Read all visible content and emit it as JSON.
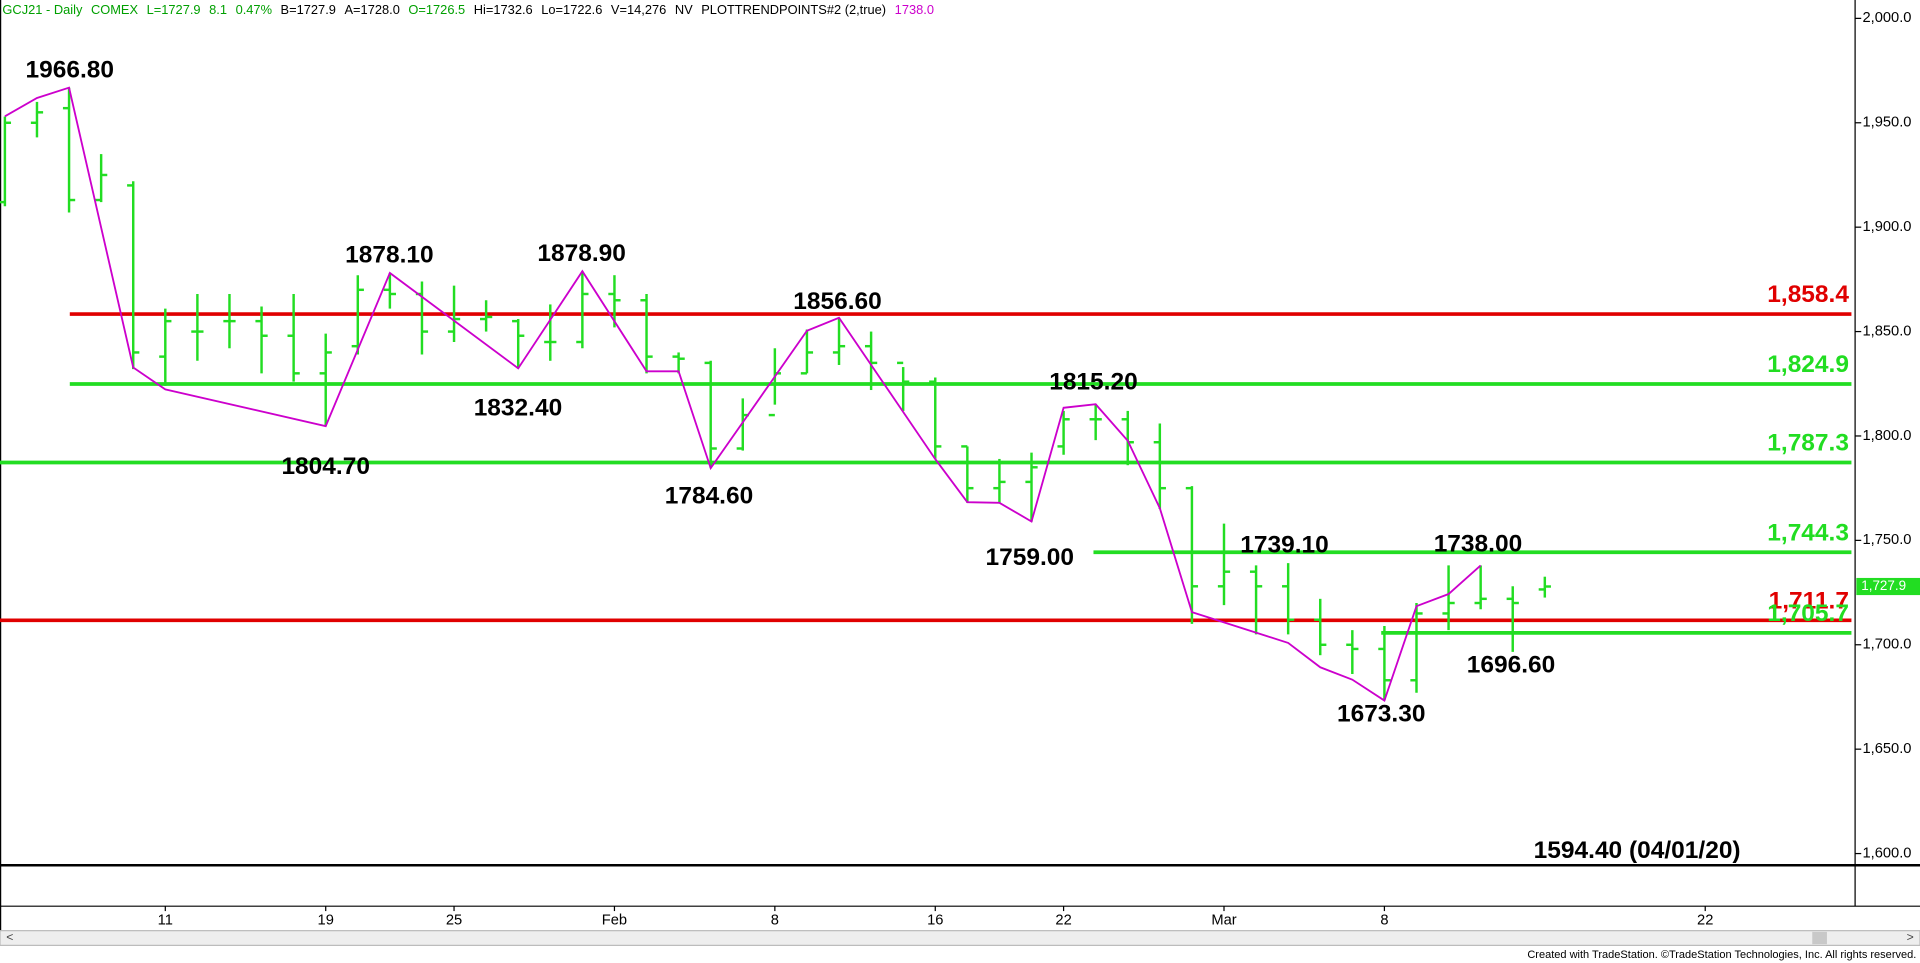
{
  "chart_data": {
    "type": "ohlc",
    "header": [
      {
        "text": "GCJ21 - Daily",
        "color": "#00a000"
      },
      {
        "text": "COMEX",
        "color": "#00a000"
      },
      {
        "text": "L=1727.9",
        "color": "#00a000"
      },
      {
        "text": "8.1",
        "color": "#00a000"
      },
      {
        "text": "0.47%",
        "color": "#00a000"
      },
      {
        "text": "B=1727.9",
        "color": "#000000"
      },
      {
        "text": "A=1728.0",
        "color": "#000000"
      },
      {
        "text": "O=1726.5",
        "color": "#00a000"
      },
      {
        "text": "Hi=1732.6",
        "color": "#000000"
      },
      {
        "text": "Lo=1722.6",
        "color": "#000000"
      },
      {
        "text": "V=14,276",
        "color": "#000000"
      },
      {
        "text": "NV",
        "color": "#000000"
      },
      {
        "text": "PLOTTRENDPOINTS#2 (2,true)",
        "color": "#000000"
      },
      {
        "text": "1738.0",
        "color": "#cc00cc"
      }
    ],
    "footer": "Created with TradeStation. ©TradeStation Technologies, Inc. All rights reserved.",
    "categories": [
      null,
      null,
      null,
      null,
      null,
      "11",
      null,
      null,
      null,
      null,
      "19",
      null,
      null,
      null,
      "25",
      null,
      null,
      null,
      null,
      "Feb",
      null,
      null,
      null,
      null,
      "8",
      null,
      null,
      null,
      null,
      "16",
      null,
      null,
      null,
      "22",
      null,
      null,
      null,
      null,
      "Mar",
      null,
      null,
      null,
      null,
      "8",
      null,
      null,
      null,
      null,
      null,
      null,
      null,
      null,
      null,
      "22",
      null,
      null,
      null,
      null
    ],
    "ohlc": {
      "color": "#22dd22",
      "open": [
        1912,
        1950,
        1957,
        1913,
        1920,
        1838,
        1850,
        1855,
        1855,
        1848,
        1830,
        1843,
        1870,
        1868,
        1850,
        1856,
        1855,
        1845,
        1845,
        1868,
        1865,
        1838,
        1835,
        1794,
        1810,
        1830,
        1840,
        1843,
        1835,
        1826,
        1795,
        1775,
        1778,
        1795,
        1808,
        1808,
        1797,
        1775,
        1728,
        1735,
        1728,
        1712,
        1700,
        1698,
        1683,
        1715,
        1720,
        1722,
        1726.5,
        null,
        null,
        null,
        null,
        null,
        null,
        null,
        null,
        null
      ],
      "high": [
        1953,
        1960,
        1966.8,
        1935,
        1922,
        1861,
        1868,
        1868,
        1862,
        1868,
        1849,
        1877,
        1878.1,
        1874,
        1872,
        1865,
        1856,
        1863,
        1878.9,
        1877,
        1868,
        1840,
        1836,
        1818,
        1842,
        1851,
        1856.6,
        1850,
        1833,
        1828,
        1795,
        1789,
        1792,
        1812,
        1815.2,
        1812,
        1806,
        1776,
        1758,
        1738,
        1739.1,
        1722,
        1707,
        1709,
        1720,
        1738,
        1738,
        1728,
        1732.6,
        null,
        null,
        null,
        null,
        null,
        null,
        null,
        null,
        null
      ],
      "low": [
        1910,
        1943,
        1907,
        1912,
        1832,
        1824,
        1836,
        1842,
        1830,
        1826,
        1804.7,
        1839,
        1861,
        1839,
        1845,
        1850,
        1832.4,
        1836,
        1842,
        1852,
        1830,
        1830,
        1784.6,
        1793,
        1815,
        1830,
        1834,
        1822,
        1812,
        1789,
        1768,
        1768,
        1759,
        1791,
        1798,
        1786,
        1765,
        1710,
        1719,
        1705,
        1705,
        1695,
        1686,
        1673.3,
        1677,
        1707,
        1717,
        1696.6,
        1722.6,
        null,
        null,
        null,
        null,
        null,
        null,
        null,
        null,
        null
      ],
      "close": [
        1950,
        1955,
        1913,
        1925,
        1840,
        1855,
        1850,
        1855,
        1848,
        1830,
        1840,
        1870,
        1868,
        1850,
        1856,
        1857,
        1848,
        1845,
        1868,
        1865,
        1838,
        1837,
        1794,
        1810,
        1830,
        1840,
        1843,
        1835,
        1826,
        1795,
        1775,
        1778,
        1785,
        1808,
        1808,
        1797,
        1775,
        1728,
        1735,
        1728,
        1712,
        1700,
        1698,
        1683,
        1715,
        1720,
        1722,
        1720,
        1727.9,
        null,
        null,
        null,
        null,
        null,
        null,
        null,
        null,
        null
      ]
    },
    "trend": {
      "color": "#cc00cc",
      "x": [
        0,
        1,
        2,
        4,
        5,
        10,
        12,
        16,
        18,
        20,
        21,
        22,
        25,
        26,
        29,
        30,
        31,
        32,
        33,
        34,
        35,
        36,
        37,
        40,
        41,
        42,
        43,
        44,
        45,
        46
      ],
      "values": [
        1953.1,
        1961.9,
        1966.8,
        1832.8,
        1822.3,
        1804.7,
        1878.1,
        1832.4,
        1878.9,
        1831,
        1831,
        1784.6,
        1850.4,
        1856.6,
        1788.9,
        1768.3,
        1768,
        1759,
        1813.5,
        1815.2,
        1797.7,
        1765.4,
        1715.6,
        1700.9,
        1689.2,
        1683.3,
        1673.3,
        1718.5,
        1724.3,
        1738
      ]
    },
    "swing_labels": [
      {
        "label": "1966.80",
        "value": 1966.8
      },
      {
        "label": "1804.70",
        "value": 1804.7
      },
      {
        "label": "1878.10",
        "value": 1878.1
      },
      {
        "label": "1832.40",
        "value": 1832.4
      },
      {
        "label": "1878.90",
        "value": 1878.9
      },
      {
        "label": "1784.60",
        "value": 1784.6
      },
      {
        "label": "1856.60",
        "value": 1856.6
      },
      {
        "label": "1759.00",
        "value": 1759
      },
      {
        "label": "1815.20",
        "value": 1815.2
      },
      {
        "label": "1739.10",
        "value": 1739.1
      },
      {
        "label": "1673.30",
        "value": 1673.3
      },
      {
        "label": "1738.00",
        "value": 1738
      },
      {
        "label": "1696.60",
        "value": 1696.6
      }
    ],
    "levels": [
      {
        "value": 1858.4,
        "label": "1,858.4",
        "color": "#e00000"
      },
      {
        "value": 1824.9,
        "label": "1,824.9",
        "color": "#22dd22"
      },
      {
        "value": 1787.3,
        "label": "1,787.3",
        "color": "#22dd22"
      },
      {
        "value": 1744.3,
        "label": "1,744.3",
        "color": "#22dd22"
      },
      {
        "value": 1711.7,
        "label": "1,711.7",
        "color": "#e00000"
      },
      {
        "value": 1705.7,
        "label": "1,705.7",
        "color": "#22dd22"
      },
      {
        "value": 1594.4,
        "label": "1594.40 (04/01/20)",
        "color": "#000000"
      }
    ],
    "last_price": 1727.9,
    "last_price_label": "1,727.9",
    "ylim": [
      1574.8,
      2008.8
    ],
    "yticks": [
      {
        "value": 1600,
        "label": "1,600.0"
      },
      {
        "value": 1650,
        "label": "1,650.0"
      },
      {
        "value": 1700,
        "label": "1,700.0"
      },
      {
        "value": 1750,
        "label": "1,750.0"
      },
      {
        "value": 1800,
        "label": "1,800.0"
      },
      {
        "value": 1850,
        "label": "1,850.0"
      },
      {
        "value": 1900,
        "label": "1,900.0"
      },
      {
        "value": 1950,
        "label": "1,950.0"
      },
      {
        "value": 2000,
        "label": "2,000.0"
      }
    ]
  }
}
